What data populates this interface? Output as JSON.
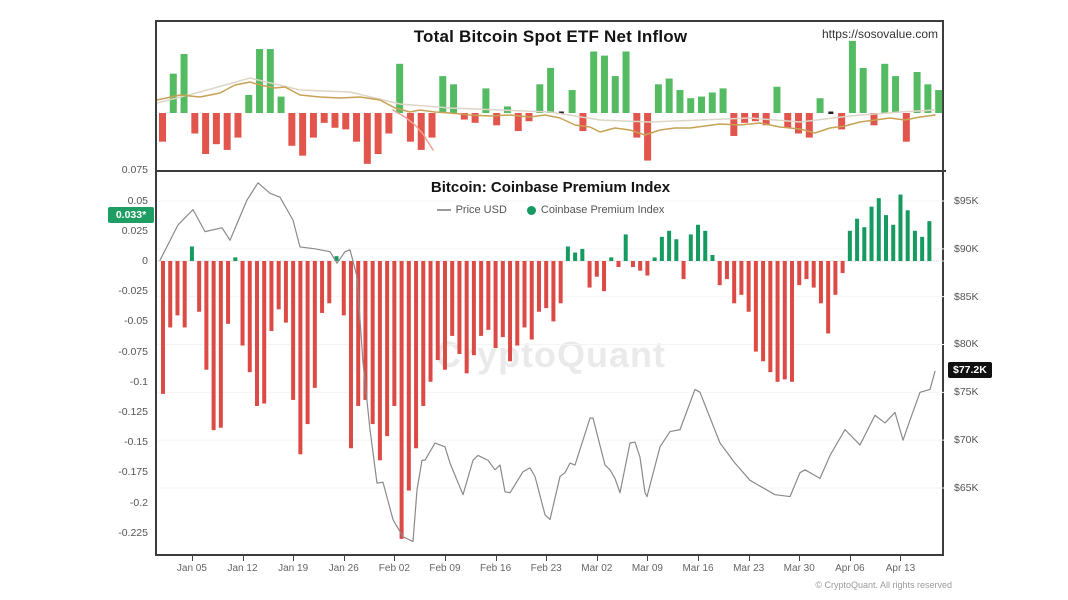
{
  "watermark": "CryptoQuant",
  "footer": "© CryptoQuant. All rights reserved",
  "chart_data": [
    {
      "type": "bar",
      "title": "Total Bitcoin Spot ETF Net Inflow",
      "source_label": "https://sosovalue.com",
      "colors": {
        "inflow": "#55bb63",
        "outflow": "#e2554c",
        "ma": "#c7a255",
        "secondary": "#ddd6c8",
        "momentum": "#f0a092"
      },
      "values": [
        -35,
        48,
        72,
        -25,
        -50,
        -38,
        -45,
        -30,
        22,
        78,
        78,
        20,
        -40,
        -52,
        -30,
        -12,
        -18,
        -20,
        -35,
        -62,
        -50,
        -25,
        60,
        -35,
        -45,
        -30,
        45,
        35,
        -8,
        -12,
        30,
        -15,
        8,
        -22,
        -10,
        35,
        55,
        0,
        28,
        -22,
        75,
        70,
        45,
        75,
        -30,
        -58,
        35,
        42,
        28,
        18,
        20,
        25,
        30,
        -28,
        -12,
        -10,
        -15,
        32,
        -18,
        -25,
        -30,
        18,
        0,
        -20,
        88,
        55,
        -15,
        60,
        45,
        -35,
        50,
        35,
        28
      ],
      "ma_line": [
        [
          0,
          78
        ],
        [
          23,
          73
        ],
        [
          43,
          75
        ],
        [
          63,
          71
        ],
        [
          78,
          63
        ],
        [
          93,
          60
        ],
        [
          103,
          63
        ],
        [
          118,
          66
        ],
        [
          128,
          65
        ],
        [
          143,
          73
        ],
        [
          163,
          75
        ],
        [
          183,
          76
        ],
        [
          203,
          75
        ],
        [
          223,
          78
        ],
        [
          238,
          86
        ],
        [
          253,
          90
        ],
        [
          263,
          88
        ],
        [
          278,
          90
        ],
        [
          293,
          91
        ],
        [
          313,
          93
        ],
        [
          333,
          94
        ],
        [
          353,
          93
        ],
        [
          373,
          95
        ],
        [
          388,
          93
        ],
        [
          403,
          96
        ],
        [
          418,
          103
        ],
        [
          433,
          105
        ],
        [
          443,
          110
        ],
        [
          458,
          106
        ],
        [
          473,
          108
        ],
        [
          488,
          113
        ],
        [
          503,
          108
        ],
        [
          518,
          106
        ],
        [
          533,
          106
        ],
        [
          548,
          104
        ],
        [
          563,
          102
        ],
        [
          583,
          103
        ],
        [
          603,
          101
        ],
        [
          623,
          105
        ],
        [
          643,
          107
        ],
        [
          658,
          111
        ],
        [
          673,
          106
        ],
        [
          688,
          104
        ],
        [
          703,
          100
        ],
        [
          718,
          98
        ],
        [
          733,
          96
        ],
        [
          748,
          98
        ],
        [
          763,
          95
        ],
        [
          778,
          93
        ]
      ],
      "secondary_line": [
        [
          0,
          81
        ],
        [
          43,
          70
        ],
        [
          93,
          56
        ],
        [
          143,
          68
        ],
        [
          193,
          70
        ],
        [
          243,
          82
        ],
        [
          293,
          86
        ],
        [
          343,
          88
        ],
        [
          393,
          90
        ],
        [
          443,
          98
        ],
        [
          493,
          100
        ],
        [
          543,
          98
        ],
        [
          593,
          96
        ],
        [
          643,
          100
        ],
        [
          693,
          94
        ],
        [
          743,
          90
        ],
        [
          778,
          88
        ]
      ],
      "momentum_segment": [
        [
          236,
          88
        ],
        [
          248,
          95
        ],
        [
          258,
          103
        ],
        [
          266,
          112
        ],
        [
          271,
          120
        ],
        [
          276,
          128
        ]
      ]
    },
    {
      "type": "bar+line",
      "title": "Bitcoin: Coinbase Premium Index",
      "legend": [
        {
          "label": "Price USD",
          "swatch": "line",
          "color": "#9a9a9a"
        },
        {
          "label": "Coinbase Premium Index",
          "swatch": "dot",
          "color": "#159a60"
        }
      ],
      "premium": {
        "current_label": "0.033*",
        "positive_color": "#159a60",
        "negative_color": "#db4a45",
        "values": [
          -0.11,
          -0.055,
          -0.045,
          -0.055,
          0.012,
          -0.042,
          -0.09,
          -0.14,
          -0.138,
          -0.052,
          0.003,
          -0.07,
          -0.092,
          -0.12,
          -0.118,
          -0.058,
          -0.04,
          -0.051,
          -0.115,
          -0.16,
          -0.135,
          -0.105,
          -0.043,
          -0.035,
          0.004,
          -0.045,
          -0.155,
          -0.12,
          -0.115,
          -0.135,
          -0.165,
          -0.145,
          -0.12,
          -0.23,
          -0.19,
          -0.155,
          -0.12,
          -0.1,
          -0.082,
          -0.09,
          -0.062,
          -0.077,
          -0.093,
          -0.078,
          -0.062,
          -0.057,
          -0.072,
          -0.063,
          -0.083,
          -0.07,
          -0.055,
          -0.065,
          -0.042,
          -0.039,
          -0.05,
          -0.035,
          0.012,
          0.007,
          0.01,
          -0.022,
          -0.013,
          -0.025,
          0.003,
          -0.005,
          0.022,
          -0.005,
          -0.008,
          -0.012,
          0.003,
          0.02,
          0.025,
          0.018,
          -0.015,
          0.022,
          0.03,
          0.025,
          0.005,
          -0.02,
          -0.015,
          -0.035,
          -0.028,
          -0.042,
          -0.075,
          -0.083,
          -0.092,
          -0.1,
          -0.098,
          -0.1,
          -0.02,
          -0.015,
          -0.022,
          -0.035,
          -0.06,
          -0.028,
          -0.01,
          0.025,
          0.035,
          0.028,
          0.045,
          0.052,
          0.038,
          0.03,
          0.055,
          0.042,
          0.025,
          0.02,
          0.033
        ]
      },
      "price": {
        "current_label": "$77.2K",
        "color": "#8a8a8a",
        "unit": "USD thousands",
        "points": [
          [
            3,
            88.8
          ],
          [
            21,
            92.5
          ],
          [
            36,
            94.1
          ],
          [
            48,
            91.8
          ],
          [
            65,
            92.2
          ],
          [
            73,
            90.9
          ],
          [
            90,
            95.1
          ],
          [
            101,
            96.9
          ],
          [
            113,
            95.8
          ],
          [
            123,
            95.4
          ],
          [
            136,
            93
          ],
          [
            143,
            90.2
          ],
          [
            158,
            90
          ],
          [
            173,
            89.7
          ],
          [
            180,
            88.5
          ],
          [
            188,
            89.7
          ],
          [
            193,
            89.9
          ],
          [
            200,
            87.1
          ],
          [
            206,
            78.1
          ],
          [
            213,
            71.1
          ],
          [
            220,
            65.5
          ],
          [
            226,
            65.6
          ],
          [
            236,
            61.7
          ],
          [
            246,
            59.9
          ],
          [
            256,
            59.4
          ],
          [
            260,
            64.8
          ],
          [
            265,
            67.9
          ],
          [
            268,
            67.9
          ],
          [
            278,
            69.7
          ],
          [
            288,
            69.3
          ],
          [
            293,
            67.6
          ],
          [
            306,
            64.3
          ],
          [
            316,
            67.9
          ],
          [
            321,
            68.4
          ],
          [
            331,
            67.9
          ],
          [
            338,
            66.9
          ],
          [
            343,
            67.4
          ],
          [
            348,
            64.6
          ],
          [
            353,
            64.5
          ],
          [
            366,
            66.7
          ],
          [
            373,
            67.1
          ],
          [
            378,
            66.2
          ],
          [
            388,
            62.2
          ],
          [
            393,
            61.7
          ],
          [
            403,
            66.2
          ],
          [
            408,
            66.6
          ],
          [
            413,
            67.6
          ],
          [
            418,
            67.4
          ],
          [
            433,
            72.3
          ],
          [
            436,
            72.3
          ],
          [
            448,
            67.4
          ],
          [
            453,
            66.9
          ],
          [
            458,
            66
          ],
          [
            463,
            64.5
          ],
          [
            473,
            69.7
          ],
          [
            478,
            69.8
          ],
          [
            483,
            68.2
          ],
          [
            488,
            64.5
          ],
          [
            490,
            64.1
          ],
          [
            503,
            69.3
          ],
          [
            513,
            70.9
          ],
          [
            523,
            71.1
          ],
          [
            533,
            73.9
          ],
          [
            538,
            75.3
          ],
          [
            543,
            75
          ],
          [
            563,
            69.7
          ],
          [
            578,
            67.6
          ],
          [
            593,
            65.8
          ],
          [
            618,
            64.3
          ],
          [
            633,
            64.1
          ],
          [
            643,
            66.6
          ],
          [
            648,
            66.9
          ],
          [
            663,
            66
          ],
          [
            673,
            68.4
          ],
          [
            688,
            71.1
          ],
          [
            703,
            69.5
          ],
          [
            718,
            72.6
          ],
          [
            728,
            71.8
          ],
          [
            738,
            72.9
          ],
          [
            746,
            70
          ],
          [
            753,
            72.1
          ],
          [
            763,
            75
          ],
          [
            773,
            75.3
          ],
          [
            778,
            77.2
          ]
        ]
      },
      "left_axis": {
        "ticks": [
          {
            "label": "0.075",
            "value": 0.075
          },
          {
            "label": "0.05",
            "value": 0.05
          },
          {
            "label": "0.025",
            "value": 0.025
          },
          {
            "label": "0",
            "value": 0
          },
          {
            "label": "-0.025",
            "value": -0.025
          },
          {
            "label": "-0.05",
            "value": -0.05
          },
          {
            "label": "-0.075",
            "value": -0.075
          },
          {
            "label": "-0.1",
            "value": -0.1
          },
          {
            "label": "-0.125",
            "value": -0.125
          },
          {
            "label": "-0.15",
            "value": -0.15
          },
          {
            "label": "-0.175",
            "value": -0.175
          },
          {
            "label": "-0.2",
            "value": -0.2
          },
          {
            "label": "-0.225",
            "value": -0.225
          }
        ]
      },
      "right_axis": {
        "ticks": [
          {
            "label": "$95K",
            "value": 95
          },
          {
            "label": "$90K",
            "value": 90
          },
          {
            "label": "$85K",
            "value": 85
          },
          {
            "label": "$80K",
            "value": 80
          },
          {
            "label": "$75K",
            "value": 75
          },
          {
            "label": "$70K",
            "value": 70
          },
          {
            "label": "$65K",
            "value": 65
          }
        ]
      },
      "x_axis": {
        "ticks": [
          {
            "label": "Jan 05",
            "day": 4
          },
          {
            "label": "Jan 12",
            "day": 11
          },
          {
            "label": "Jan 19",
            "day": 18
          },
          {
            "label": "Jan 26",
            "day": 25
          },
          {
            "label": "Feb 02",
            "day": 32
          },
          {
            "label": "Feb 09",
            "day": 39
          },
          {
            "label": "Feb 16",
            "day": 46
          },
          {
            "label": "Feb 23",
            "day": 53
          },
          {
            "label": "Mar 02",
            "day": 60
          },
          {
            "label": "Mar 09",
            "day": 67
          },
          {
            "label": "Mar 16",
            "day": 74
          },
          {
            "label": "Mar 23",
            "day": 81
          },
          {
            "label": "Mar 30",
            "day": 88
          },
          {
            "label": "Apr 06",
            "day": 95
          },
          {
            "label": "Apr 13",
            "day": 102
          }
        ]
      }
    }
  ]
}
